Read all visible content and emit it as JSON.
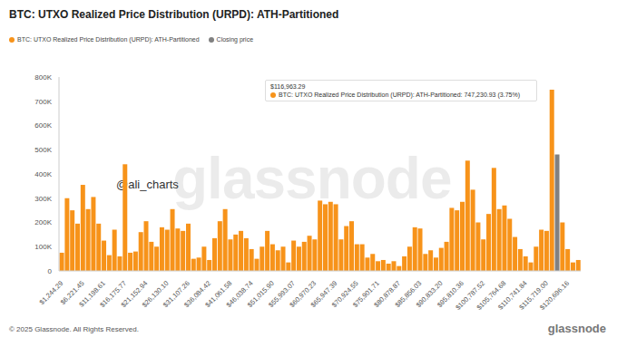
{
  "chart_data": {
    "type": "bar",
    "title": "BTC: UTXO Realized Price Distribution (URPD): ATH-Partitioned",
    "stacked": true,
    "grid": false,
    "categories": [
      "$1,244.29",
      null,
      null,
      null,
      "$6,221.45",
      null,
      null,
      null,
      "$11,198.61",
      null,
      null,
      null,
      "$16,175.77",
      null,
      null,
      null,
      "$21,152.94",
      null,
      null,
      null,
      "$26,130.10",
      null,
      null,
      null,
      "$31,107.26",
      null,
      null,
      null,
      "$36,084.42",
      null,
      null,
      null,
      "$41,061.58",
      null,
      null,
      null,
      "$46,038.74",
      null,
      null,
      null,
      "$51,015.90",
      null,
      null,
      null,
      "$55,993.07",
      null,
      null,
      null,
      "$60,970.23",
      null,
      null,
      null,
      "$65,947.39",
      null,
      null,
      null,
      "$70,924.55",
      null,
      null,
      null,
      "$75,901.71",
      null,
      null,
      null,
      "$80,878.87",
      null,
      null,
      null,
      "$85,856.03",
      null,
      null,
      null,
      "$90,833.20",
      null,
      null,
      null,
      "$95,810.36",
      null,
      null,
      null,
      "$100,787.52",
      null,
      null,
      null,
      "$105,764.68",
      null,
      null,
      null,
      "$110,741.84",
      null,
      null,
      null,
      "$115,719.00",
      null,
      null,
      null,
      "$120,696.16",
      null,
      null
    ],
    "series": [
      {
        "name": "BTC: UTXO Realized Price Distribution (URPD): ATH-Partitioned",
        "color": "#f7931a",
        "values": [
          75000,
          300000,
          250000,
          195000,
          355000,
          255000,
          305000,
          195000,
          125000,
          65000,
          170000,
          60000,
          440000,
          75000,
          80000,
          160000,
          205000,
          120000,
          100000,
          180000,
          170000,
          255000,
          175000,
          165000,
          195000,
          50000,
          55000,
          100000,
          45000,
          135000,
          205000,
          255000,
          130000,
          150000,
          165000,
          135000,
          90000,
          50000,
          100000,
          165000,
          110000,
          85000,
          100000,
          35000,
          125000,
          100000,
          120000,
          145000,
          130000,
          290000,
          275000,
          285000,
          275000,
          130000,
          185000,
          205000,
          110000,
          110000,
          55000,
          70000,
          40000,
          45000,
          30000,
          40000,
          20000,
          60000,
          100000,
          180000,
          175000,
          70000,
          85000,
          55000,
          95000,
          120000,
          260000,
          250000,
          285000,
          455000,
          335000,
          200000,
          130000,
          235000,
          425000,
          255000,
          270000,
          215000,
          140000,
          90000,
          60000,
          35000,
          100000,
          170000,
          165000,
          747230.93,
          null,
          200000,
          90000,
          35000,
          45000
        ]
      },
      {
        "name": "Closing price",
        "color": "#808080",
        "values": [
          null,
          null,
          null,
          null,
          null,
          null,
          null,
          null,
          null,
          null,
          null,
          null,
          null,
          null,
          null,
          null,
          null,
          null,
          null,
          null,
          null,
          null,
          null,
          null,
          null,
          null,
          null,
          null,
          null,
          null,
          null,
          null,
          null,
          null,
          null,
          null,
          null,
          null,
          null,
          null,
          null,
          null,
          null,
          null,
          null,
          null,
          null,
          null,
          null,
          null,
          null,
          null,
          null,
          null,
          null,
          null,
          null,
          null,
          null,
          null,
          null,
          null,
          null,
          null,
          null,
          null,
          null,
          null,
          null,
          null,
          null,
          null,
          null,
          null,
          null,
          null,
          null,
          null,
          null,
          null,
          null,
          null,
          null,
          null,
          null,
          null,
          null,
          null,
          null,
          null,
          null,
          null,
          null,
          null,
          480000,
          null,
          null,
          null,
          null
        ]
      }
    ],
    "ylim": [
      0,
      800000
    ],
    "yticks": [
      0,
      {
        "value": 100000,
        "label": "100K"
      },
      {
        "value": 200000,
        "label": "200K"
      },
      {
        "value": 300000,
        "label": "300K"
      },
      {
        "value": 400000,
        "label": "400K"
      },
      {
        "value": 500000,
        "label": "500K"
      },
      {
        "value": 600000,
        "label": "600K"
      },
      {
        "value": 700000,
        "label": "700K"
      },
      {
        "value": 800000,
        "label": "800K"
      }
    ],
    "tooltip": {
      "header": "$116,963.29",
      "text": "BTC: UTXO Realized Price Distribution (URPD): ATH-Partitioned: 747,230.93 (3.75%)"
    },
    "watermark": "glassnode",
    "credit": "@ali_charts",
    "copyright": "© 2025 Glassnode. All Rights Reserved.",
    "logo": "glassnode"
  }
}
